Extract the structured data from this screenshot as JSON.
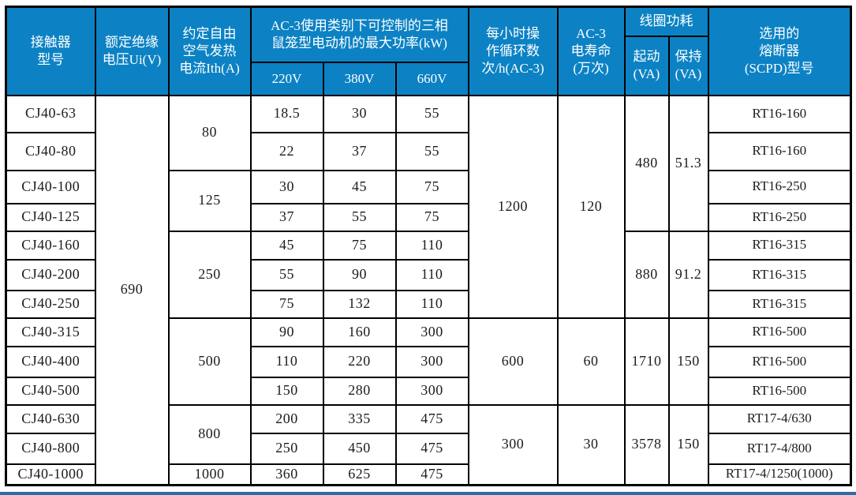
{
  "colors": {
    "header_bg": "#0c82c4",
    "header_text": "#ffffff",
    "grid_border": "#000000",
    "bottom_strip": "#2e6da4"
  },
  "table": {
    "header_rows": [
      [
        {
          "t": "接触器\n型号",
          "rs": 3,
          "cs": 1,
          "name": "header-model"
        },
        {
          "t": "额定绝缘\n电压Ui(V)",
          "rs": 3,
          "cs": 1,
          "name": "header-rated-insulation-voltage"
        },
        {
          "t": "约定自由\n空气发热\n电流Ith(A)",
          "rs": 3,
          "cs": 1,
          "name": "header-thermal-current"
        },
        {
          "t": "AC-3使用类别下可控制的三相\n鼠笼型电动机的最大功率(kW)",
          "rs": 2,
          "cs": 3,
          "name": "header-max-motor-power-group"
        },
        {
          "t": "每小时操\n作循环数\n次/h(AC-3)",
          "rs": 3,
          "cs": 1,
          "name": "header-operating-cycles-per-hour"
        },
        {
          "t": "AC-3\n电寿命\n(万次)",
          "rs": 3,
          "cs": 1,
          "name": "header-electrical-life"
        },
        {
          "t": "线圈功耗",
          "rs": 1,
          "cs": 2,
          "name": "header-coil-power-group"
        },
        {
          "t": "选用的\n熔断器\n(SCPD)型号",
          "rs": 3,
          "cs": 1,
          "name": "header-fuse-type"
        }
      ],
      [
        {
          "t": "起动\n(VA)",
          "rs": 2,
          "cs": 1,
          "name": "header-coil-start-va"
        },
        {
          "t": "保持\n(VA)",
          "rs": 2,
          "cs": 1,
          "name": "header-coil-hold-va"
        }
      ],
      [
        {
          "t": "220V",
          "rs": 1,
          "cs": 1,
          "name": "header-220v"
        },
        {
          "t": "380V",
          "rs": 1,
          "cs": 1,
          "name": "header-380v"
        },
        {
          "t": "660V",
          "rs": 1,
          "cs": 1,
          "name": "header-660v"
        }
      ]
    ],
    "body_rows": [
      [
        {
          "t": "CJ40-63",
          "name": "model-cell"
        },
        {
          "t": "690",
          "rs": 13,
          "name": "rated-voltage-cell"
        },
        {
          "t": "80",
          "rs": 2,
          "name": "thermal-current-cell"
        },
        {
          "t": "18.5",
          "name": "power-220v-cell"
        },
        {
          "t": "30",
          "name": "power-380v-cell"
        },
        {
          "t": "55",
          "name": "power-660v-cell"
        },
        {
          "t": "1200",
          "rs": 7,
          "name": "ops-per-hour-cell"
        },
        {
          "t": "120",
          "rs": 7,
          "name": "electrical-life-cell"
        },
        {
          "t": "480",
          "rs": 4,
          "name": "coil-start-cell"
        },
        {
          "t": "51.3",
          "rs": 4,
          "name": "coil-hold-cell"
        },
        {
          "t": "RT16-160",
          "name": "fuse-cell",
          "cls": "fuse-cell"
        }
      ],
      [
        {
          "t": "CJ40-80",
          "name": "model-cell"
        },
        {
          "t": "22",
          "name": "power-220v-cell"
        },
        {
          "t": "37",
          "name": "power-380v-cell"
        },
        {
          "t": "55",
          "name": "power-660v-cell"
        },
        {
          "t": "RT16-160",
          "name": "fuse-cell",
          "cls": "fuse-cell"
        }
      ],
      [
        {
          "t": "CJ40-100",
          "name": "model-cell"
        },
        {
          "t": "125",
          "rs": 2,
          "name": "thermal-current-cell"
        },
        {
          "t": "30",
          "name": "power-220v-cell"
        },
        {
          "t": "45",
          "name": "power-380v-cell"
        },
        {
          "t": "75",
          "name": "power-660v-cell"
        },
        {
          "t": "RT16-250",
          "name": "fuse-cell",
          "cls": "fuse-cell"
        }
      ],
      [
        {
          "t": "CJ40-125",
          "name": "model-cell"
        },
        {
          "t": "37",
          "name": "power-220v-cell"
        },
        {
          "t": "55",
          "name": "power-380v-cell"
        },
        {
          "t": "75",
          "name": "power-660v-cell"
        },
        {
          "t": "RT16-250",
          "name": "fuse-cell",
          "cls": "fuse-cell"
        }
      ],
      [
        {
          "t": "CJ40-160",
          "name": "model-cell"
        },
        {
          "t": "250",
          "rs": 3,
          "name": "thermal-current-cell"
        },
        {
          "t": "45",
          "name": "power-220v-cell"
        },
        {
          "t": "75",
          "name": "power-380v-cell"
        },
        {
          "t": "110",
          "name": "power-660v-cell"
        },
        {
          "t": "880",
          "rs": 3,
          "name": "coil-start-cell"
        },
        {
          "t": "91.2",
          "rs": 3,
          "name": "coil-hold-cell"
        },
        {
          "t": "RT16-315",
          "name": "fuse-cell",
          "cls": "fuse-cell"
        }
      ],
      [
        {
          "t": "CJ40-200",
          "name": "model-cell"
        },
        {
          "t": "55",
          "name": "power-220v-cell"
        },
        {
          "t": "90",
          "name": "power-380v-cell"
        },
        {
          "t": "110",
          "name": "power-660v-cell"
        },
        {
          "t": "RT16-315",
          "name": "fuse-cell",
          "cls": "fuse-cell"
        }
      ],
      [
        {
          "t": "CJ40-250",
          "name": "model-cell"
        },
        {
          "t": "75",
          "name": "power-220v-cell"
        },
        {
          "t": "132",
          "name": "power-380v-cell"
        },
        {
          "t": "110",
          "name": "power-660v-cell"
        },
        {
          "t": "RT16-315",
          "name": "fuse-cell",
          "cls": "fuse-cell"
        }
      ],
      [
        {
          "t": "CJ40-315",
          "name": "model-cell"
        },
        {
          "t": "500",
          "rs": 3,
          "name": "thermal-current-cell"
        },
        {
          "t": "90",
          "name": "power-220v-cell"
        },
        {
          "t": "160",
          "name": "power-380v-cell"
        },
        {
          "t": "300",
          "name": "power-660v-cell"
        },
        {
          "t": "600",
          "rs": 3,
          "name": "ops-per-hour-cell"
        },
        {
          "t": "60",
          "rs": 3,
          "name": "electrical-life-cell"
        },
        {
          "t": "1710",
          "rs": 3,
          "name": "coil-start-cell"
        },
        {
          "t": "150",
          "rs": 3,
          "name": "coil-hold-cell"
        },
        {
          "t": "RT16-500",
          "name": "fuse-cell",
          "cls": "fuse-cell"
        }
      ],
      [
        {
          "t": "CJ40-400",
          "name": "model-cell"
        },
        {
          "t": "110",
          "name": "power-220v-cell"
        },
        {
          "t": "220",
          "name": "power-380v-cell"
        },
        {
          "t": "300",
          "name": "power-660v-cell"
        },
        {
          "t": "RT16-500",
          "name": "fuse-cell",
          "cls": "fuse-cell"
        }
      ],
      [
        {
          "t": "CJ40-500",
          "name": "model-cell"
        },
        {
          "t": "150",
          "name": "power-220v-cell"
        },
        {
          "t": "280",
          "name": "power-380v-cell"
        },
        {
          "t": "300",
          "name": "power-660v-cell"
        },
        {
          "t": "RT16-500",
          "name": "fuse-cell",
          "cls": "fuse-cell"
        }
      ],
      [
        {
          "t": "CJ40-630",
          "name": "model-cell"
        },
        {
          "t": "800",
          "rs": 2,
          "name": "thermal-current-cell"
        },
        {
          "t": "200",
          "name": "power-220v-cell"
        },
        {
          "t": "335",
          "name": "power-380v-cell"
        },
        {
          "t": "475",
          "name": "power-660v-cell"
        },
        {
          "t": "300",
          "rs": 3,
          "name": "ops-per-hour-cell"
        },
        {
          "t": "30",
          "rs": 3,
          "name": "electrical-life-cell"
        },
        {
          "t": "3578",
          "rs": 3,
          "name": "coil-start-cell"
        },
        {
          "t": "150",
          "rs": 3,
          "name": "coil-hold-cell"
        },
        {
          "t": "RT17-4/630",
          "name": "fuse-cell",
          "cls": "fuse-cell"
        }
      ],
      [
        {
          "t": "CJ40-800",
          "name": "model-cell"
        },
        {
          "t": "250",
          "name": "power-220v-cell"
        },
        {
          "t": "450",
          "name": "power-380v-cell"
        },
        {
          "t": "475",
          "name": "power-660v-cell"
        },
        {
          "t": "RT17-4/800",
          "name": "fuse-cell",
          "cls": "fuse-cell"
        }
      ],
      [
        {
          "t": "CJ40-1000",
          "name": "model-cell"
        },
        {
          "t": "1000",
          "name": "thermal-current-cell"
        },
        {
          "t": "360",
          "name": "power-220v-cell"
        },
        {
          "t": "625",
          "name": "power-380v-cell"
        },
        {
          "t": "475",
          "name": "power-660v-cell"
        },
        {
          "t": "RT17-4/1250(1000)",
          "name": "fuse-cell",
          "cls": "fuse-cell"
        }
      ]
    ]
  }
}
